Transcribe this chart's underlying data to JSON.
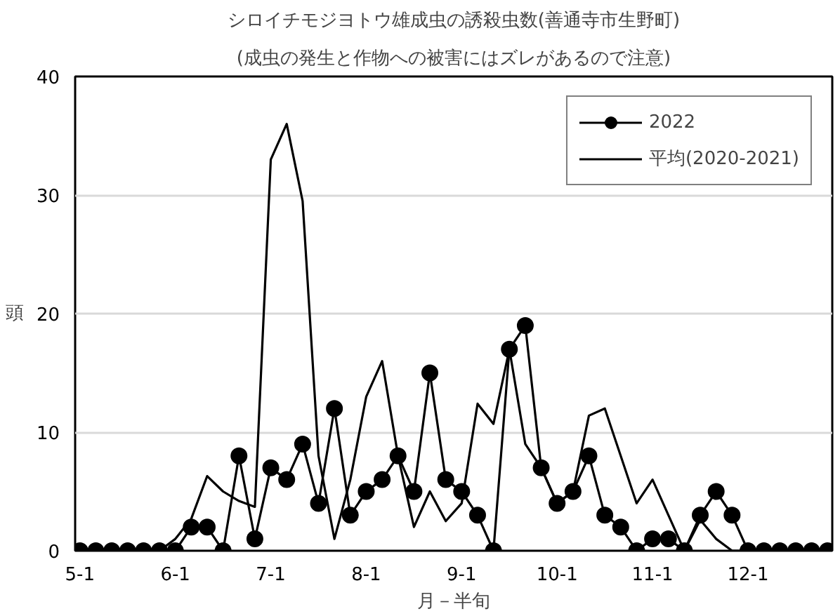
{
  "chart_data": {
    "type": "line",
    "title": "シロイチモジヨトウ雄成虫の誘殺虫数(善通寺市生野町)",
    "subtitle": "(成虫の発生と作物への被害にはズレがあるので注意)",
    "xlabel": "月－半旬",
    "ylabel": "頭",
    "categories": [
      "5-1",
      null,
      null,
      null,
      null,
      null,
      "6-1",
      null,
      null,
      null,
      null,
      null,
      "7-1",
      null,
      null,
      null,
      null,
      null,
      "8-1",
      null,
      null,
      null,
      null,
      null,
      "9-1",
      null,
      null,
      null,
      null,
      null,
      "10-1",
      null,
      null,
      null,
      null,
      null,
      "11-1",
      null,
      null,
      null,
      null,
      null,
      "12-1",
      null,
      null,
      null,
      null,
      null
    ],
    "series": [
      {
        "name": "2022",
        "color": "#000000",
        "marker": "circle",
        "values": [
          0,
          0,
          0,
          0,
          0,
          0,
          0,
          2,
          2,
          0,
          8,
          1,
          7,
          6,
          9,
          4,
          12,
          3,
          5,
          6,
          8,
          5,
          15,
          6,
          5,
          3,
          0,
          17,
          19,
          7,
          4,
          5,
          8,
          3,
          2,
          0,
          1,
          1,
          0,
          3,
          5,
          3,
          0,
          0,
          0,
          0,
          0,
          0
        ]
      },
      {
        "name": "平均(2020-2021)",
        "color": "#000000",
        "marker": "none",
        "values": [
          0,
          0,
          0.3,
          0,
          0.3,
          0,
          1,
          2.7,
          6.3,
          5,
          4.2,
          3.7,
          33,
          36,
          29.5,
          8,
          1,
          6,
          13,
          16,
          8,
          2,
          5,
          2.5,
          4,
          12.4,
          10.7,
          17,
          9,
          7,
          4,
          5,
          11.4,
          12,
          8,
          4,
          6,
          3,
          0,
          2.6,
          1,
          0,
          0,
          0,
          0,
          0,
          0,
          0
        ]
      }
    ],
    "ylim": [
      0,
      40
    ],
    "yticks": [
      0,
      10,
      20,
      30,
      40
    ],
    "grid": "y",
    "legend": "top right"
  }
}
